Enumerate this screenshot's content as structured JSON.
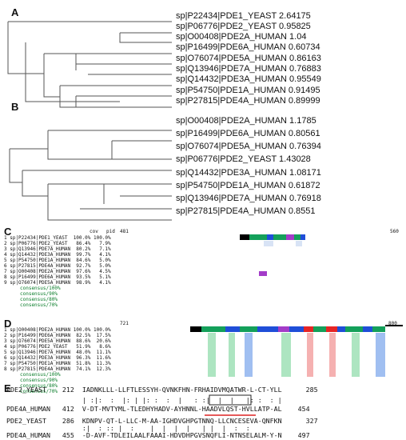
{
  "panel_a": {
    "label": "A",
    "leaves": [
      "sp|P22434|PDE1_YEAST 2.64175",
      "sp|P06776|PDE2_YEAST 0.95825",
      "sp|O00408|PDE2A_HUMAN 1.04",
      "sp|P16499|PDE6A_HUMAN 0.60734",
      "sp|O76074|PDE5A_HUMAN 0.86163",
      "sp|Q13946|PDE7A_HUMAN 0.76883",
      "sp|Q14432|PDE3A_HUMAN 0.95549",
      "sp|P54750|PDE1A_HUMAN 0.91495",
      "sp|P27815|PDE4A_HUMAN 0.89999"
    ]
  },
  "panel_b": {
    "label": "B",
    "leaves": [
      "sp|O00408|PDE2A_HUMAN 1.1785",
      "sp|P16499|PDE6A_HUMAN 0.80561",
      "sp|O76074|PDE5A_HUMAN 0.76394",
      "sp|P06776|PDE2_YEAST 1.43028",
      "sp|Q14432|PDE3A_HUMAN 1.08171",
      "sp|P54750|PDE1A_HUMAN 0.61872",
      "sp|Q13946|PDE7A_HUMAN 0.76918",
      "sp|P27815|PDE4A_HUMAN 0.8551"
    ]
  },
  "panel_c": {
    "label": "C",
    "header_cov": "cov",
    "header_pid": "pid",
    "range_start": "481",
    "range_end": "560",
    "rows": [
      "1 sp|P22434|PDE1_YEAST  100.0% 100.0%",
      "2 sp|P06776|PDE2_YEAST   86.4%   7.9%",
      "3 sp|Q13946|PDE7A_HUMAN  80.2%   7.1%",
      "4 sp|Q14432|PDE3A_HUMAN  99.7%   4.1%",
      "5 sp|P54750|PDE1A_HUMAN  84.6%   5.0%",
      "6 sp|P27815|PDE4A_HUMAN  92.7%   5.0%",
      "7 sp|O00408|PDE2A_HUMAN  97.6%   4.5%",
      "8 sp|P16499|PDE6A_HUMAN  93.5%   5.1%",
      "9 sp|O76074|PDE5A_HUMAN  98.9%   4.1%"
    ],
    "consensus": [
      "consensus/100%",
      "consensus/90%",
      "consensus/80%",
      "consensus/70%"
    ]
  },
  "panel_d": {
    "label": "D",
    "range_start": "721",
    "range_end": "800",
    "rows": [
      "1 sp|O00408|PDE2A_HUMAN 100.0% 100.0%",
      "2 sp|P16499|PDE6A_HUMAN  82.5%  17.5%",
      "3 sp|O76074|PDE5A_HUMAN  88.6%  20.6%",
      "4 sp|P06776|PDE2_YEAST   51.9%   8.6%",
      "5 sp|Q13946|PDE7A_HUMAN  48.0%  11.1%",
      "6 sp|Q14432|PDE3A_HUMAN  96.3%  11.6%",
      "7 sp|P54750|PDE1A_HUMAN  51.8%  11.3%",
      "8 sp|P27815|PDE4A_HUMAN  74.1%  12.3%"
    ],
    "consensus": [
      "consensus/100%",
      "consensus/90%",
      "consensus/80%",
      "consensus/70%"
    ]
  },
  "panel_e": {
    "label": "E",
    "lines": [
      "PDE2_YEAST    212  IADNKLLL-LLFTLESSYH-QVNKFHN-FRHAIDVMQATWR-L-CT-YLL      285",
      "                   | :|:  :  |: | |: :  :  |   : :|  |  |   |: :  : |",
      "PDE4A_HUMAN   412  V-DT-MVTYML-TLEDHYHADV-AYHNNL-HAADVLQST-HVLLATP-AL    454",
      "",
      "PDE2_YEAST    286  KDNPV-QT-L-LLC-M-AA-IGHDVGHPGTNNQ-LLCNCESEVA-QNFKN      327",
      "                   :|  : :: |  :    |  |  |  |   | |  |  :  :",
      "PDE4A_HUMAN   455  -D-AVF-TDLEILAALFAAAI-HDVDHPGVSNQFLI-NTNSELALM-Y-N    497"
    ]
  }
}
